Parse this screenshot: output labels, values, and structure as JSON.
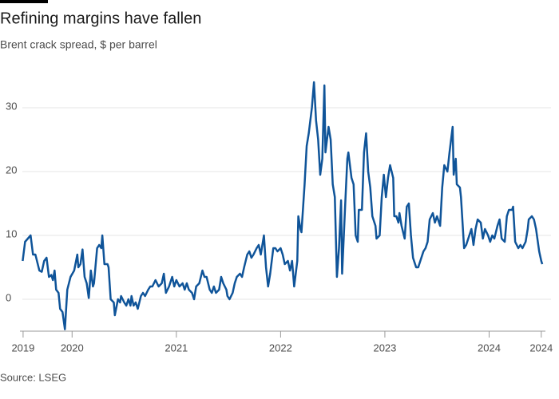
{
  "chart_data": {
    "type": "line",
    "title": "Refining margins have fallen",
    "subtitle": "Brent crack spread, $ per barrel",
    "source": "Source: LSEG",
    "x": [
      2019.526,
      2019.549,
      2019.602,
      2019.625,
      2019.648,
      2019.686,
      2019.709,
      2019.732,
      2019.755,
      2019.778,
      2019.801,
      2019.816,
      2019.832,
      2019.847,
      2019.87,
      2019.885,
      2019.908,
      2019.931,
      2019.954,
      2019.985,
      2020.02,
      2020.05,
      2020.06,
      2020.08,
      2020.1,
      2020.12,
      2020.14,
      2020.16,
      2020.18,
      2020.2,
      2020.21,
      2020.24,
      2020.26,
      2020.28,
      2020.29,
      2020.31,
      2020.34,
      2020.35,
      2020.37,
      2020.4,
      2020.41,
      2020.44,
      2020.46,
      2020.47,
      2020.5,
      2020.52,
      2020.54,
      2020.56,
      2020.57,
      2020.59,
      2020.61,
      2020.63,
      2020.66,
      2020.68,
      2020.7,
      2020.73,
      2020.75,
      2020.77,
      2020.8,
      2020.83,
      2020.86,
      2020.88,
      2020.9,
      2020.93,
      2020.96,
      2020.98,
      2021.0,
      2021.03,
      2021.06,
      2021.08,
      2021.1,
      2021.12,
      2021.15,
      2021.17,
      2021.19,
      2021.22,
      2021.25,
      2021.27,
      2021.29,
      2021.32,
      2021.34,
      2021.36,
      2021.38,
      2021.41,
      2021.43,
      2021.45,
      2021.48,
      2021.49,
      2021.51,
      2021.54,
      2021.56,
      2021.58,
      2021.61,
      2021.63,
      2021.65,
      2021.68,
      2021.7,
      2021.72,
      2021.74,
      2021.77,
      2021.79,
      2021.81,
      2021.84,
      2021.86,
      2021.88,
      2021.9,
      2021.93,
      2021.95,
      2021.97,
      2022.0,
      2022.02,
      2022.04,
      2022.07,
      2022.09,
      2022.11,
      2022.13,
      2022.16,
      2022.17,
      2022.19,
      2022.2,
      2022.23,
      2022.25,
      2022.27,
      2022.3,
      2022.32,
      2022.34,
      2022.36,
      2022.38,
      2022.4,
      2022.42,
      2022.43,
      2022.46,
      2022.48,
      2022.5,
      2022.52,
      2022.54,
      2022.56,
      2022.58,
      2022.59,
      2022.62,
      2022.64,
      2022.65,
      2022.68,
      2022.7,
      2022.72,
      2022.74,
      2022.75,
      2022.78,
      2022.8,
      2022.82,
      2022.84,
      2022.86,
      2022.88,
      2022.91,
      2022.92,
      2022.95,
      2022.97,
      2022.99,
      2023.01,
      2023.03,
      2023.05,
      2023.08,
      2023.09,
      2023.11,
      2023.13,
      2023.14,
      2023.16,
      2023.19,
      2023.21,
      2023.23,
      2023.25,
      2023.27,
      2023.3,
      2023.32,
      2023.34,
      2023.37,
      2023.39,
      2023.41,
      2023.43,
      2023.46,
      2023.48,
      2023.5,
      2023.53,
      2023.55,
      2023.57,
      2023.6,
      2023.62,
      2023.65,
      2023.66,
      2023.68,
      2023.69,
      2023.72,
      2023.73,
      2023.76,
      2023.78,
      2023.8,
      2023.83,
      2023.85,
      2023.87,
      2023.89,
      2023.92,
      2023.94,
      2023.96,
      2023.99,
      2024.01,
      2024.03,
      2024.05,
      2024.08,
      2024.1,
      2024.12,
      2024.15,
      2024.17,
      2024.19,
      2024.22,
      2024.23,
      2024.25,
      2024.28,
      2024.3,
      2024.32,
      2024.35,
      2024.37,
      2024.38,
      2024.41,
      2024.43,
      2024.45,
      2024.48,
      2024.5,
      2024.51
    ],
    "series": [
      {
        "name": "Brent crack spread",
        "color": "#0f5499",
        "values": [
          6,
          9,
          10,
          7,
          7,
          4.5,
          4.3,
          6,
          6.5,
          3.5,
          3.8,
          3,
          4.5,
          1.5,
          1,
          -1.5,
          -2,
          -4.7,
          1.5,
          3.5,
          4.5,
          7,
          5,
          5.5,
          7.8,
          3.5,
          2.5,
          0.2,
          4.5,
          2,
          2.5,
          8,
          8.5,
          8,
          10,
          5.5,
          5.5,
          5,
          0,
          -0.5,
          -2.5,
          0,
          -0.5,
          0.5,
          -0.5,
          -1,
          0,
          -1,
          0.5,
          -1,
          -0.5,
          -1.5,
          0.5,
          1,
          0.5,
          1.5,
          2,
          2,
          3,
          2,
          2.5,
          4,
          1,
          2,
          3.5,
          2,
          3,
          2,
          2.5,
          1.5,
          2.5,
          1.5,
          1,
          0,
          2,
          2.5,
          4.5,
          3.5,
          3.5,
          1.5,
          1,
          2,
          1,
          1.5,
          3.5,
          2.5,
          1.5,
          0.5,
          0,
          1,
          2.5,
          3.5,
          4,
          3.5,
          5,
          7,
          7.5,
          6.5,
          7,
          8,
          8.5,
          7,
          10,
          5,
          2,
          4,
          8,
          8,
          7.5,
          8,
          7,
          5.5,
          6,
          4.5,
          6,
          2,
          6,
          13,
          11,
          10.5,
          18,
          24,
          26,
          30,
          34,
          28,
          25,
          19.5,
          22,
          33.5,
          23,
          27,
          25,
          18,
          16,
          3.5,
          8,
          15.5,
          4,
          15,
          22,
          23,
          19,
          18,
          10,
          9,
          14,
          14,
          23,
          26,
          20,
          17.5,
          13,
          11.5,
          9.5,
          10,
          16,
          19.5,
          16,
          19,
          21,
          19,
          13,
          13,
          12,
          13.5,
          11.5,
          9.5,
          14.5,
          15,
          10,
          6.5,
          5,
          5,
          6,
          7.5,
          8,
          9,
          12.5,
          13.5,
          12,
          13,
          11.5,
          17.5,
          21,
          20,
          23,
          27,
          19.5,
          22,
          18,
          17.5,
          16,
          8,
          8.5,
          9.5,
          11,
          8.5,
          11,
          12.5,
          12,
          9.5,
          11,
          10,
          9,
          10,
          9.5,
          11.5,
          12.5,
          9.5,
          9,
          13,
          14,
          14,
          14.5,
          9,
          8,
          8.5,
          8,
          9,
          11,
          12.5,
          13,
          12.5,
          11,
          7.5,
          6,
          5.5
        ]
      }
    ],
    "xlim": [
      2019.5,
      2024.54
    ],
    "xticks": [
      {
        "value": 2019.53,
        "label": "2019"
      },
      2020,
      2021,
      2022,
      2023,
      2024,
      {
        "value": 2024.5,
        "label": "2024"
      }
    ],
    "ylim": [
      -5,
      37
    ],
    "yticks": [
      0,
      10,
      20,
      30
    ],
    "grid": true
  }
}
